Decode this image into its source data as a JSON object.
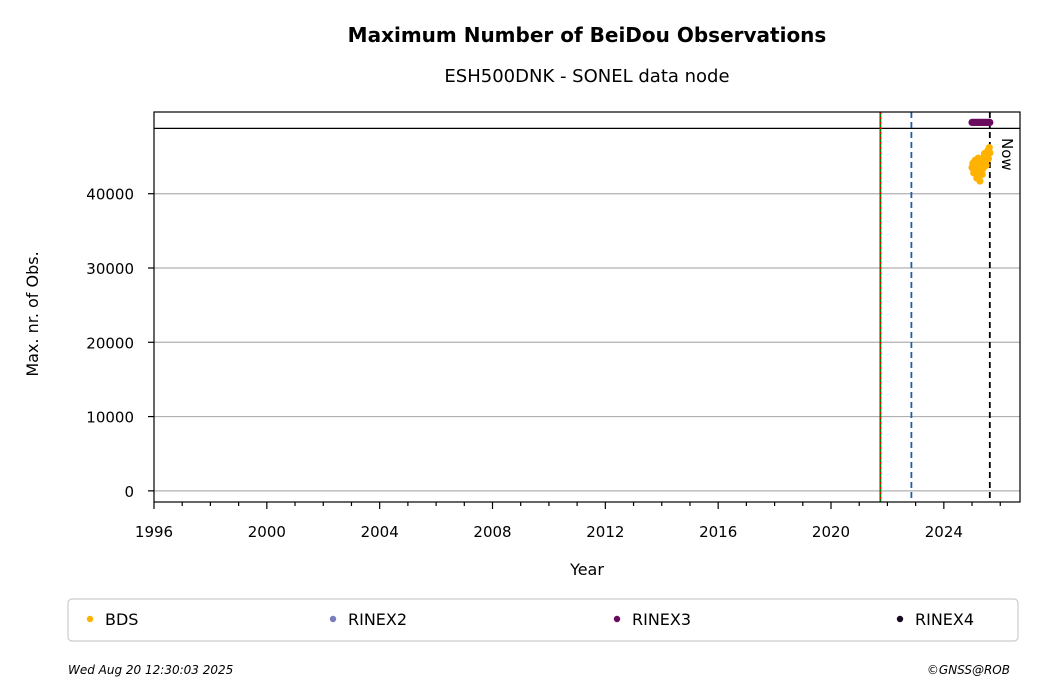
{
  "chart_data": {
    "type": "scatter",
    "title": "Maximum Number of BeiDou Observations",
    "subtitle": "ESH500DNK - SONEL data node",
    "xlabel": "Year",
    "ylabel": "Max. nr. of Obs.",
    "xlim": [
      1996,
      2026.7
    ],
    "ylim": [
      -1500,
      51000
    ],
    "x_ticks": [
      1996,
      2000,
      2004,
      2008,
      2012,
      2016,
      2020,
      2024
    ],
    "y_ticks": [
      0,
      10000,
      20000,
      30000,
      40000
    ],
    "grid": "horizontal",
    "reference_line_y": 48800,
    "vlines": [
      {
        "x": 2021.75,
        "color": "#008000",
        "style": "solid"
      },
      {
        "x": 2021.75,
        "color": "#ff0000",
        "style": "dotted"
      },
      {
        "x": 2022.85,
        "color": "#1f5fa8",
        "style": "dashed"
      },
      {
        "x": 2025.63,
        "color": "#000000",
        "style": "dashed",
        "label": "Now"
      }
    ],
    "series": [
      {
        "name": "BDS",
        "color": "#ffb300",
        "points": [
          [
            2025.0,
            43500
          ],
          [
            2025.03,
            44100
          ],
          [
            2025.06,
            42800
          ],
          [
            2025.08,
            43900
          ],
          [
            2025.11,
            44500
          ],
          [
            2025.14,
            43200
          ],
          [
            2025.17,
            42100
          ],
          [
            2025.19,
            43800
          ],
          [
            2025.22,
            44800
          ],
          [
            2025.25,
            43000
          ],
          [
            2025.28,
            41700
          ],
          [
            2025.31,
            43600
          ],
          [
            2025.33,
            44300
          ],
          [
            2025.36,
            42600
          ],
          [
            2025.39,
            43400
          ],
          [
            2025.42,
            44900
          ],
          [
            2025.44,
            45400
          ],
          [
            2025.47,
            44200
          ],
          [
            2025.5,
            43800
          ],
          [
            2025.53,
            45100
          ],
          [
            2025.56,
            45800
          ],
          [
            2025.58,
            44700
          ],
          [
            2025.61,
            46200
          ],
          [
            2025.63,
            45500
          ]
        ]
      },
      {
        "name": "RINEX2",
        "color": "#7b7bbf",
        "points": []
      },
      {
        "name": "RINEX3",
        "color": "#6a0a5f",
        "points": [
          [
            2025.0,
            49600
          ],
          [
            2025.05,
            49600
          ],
          [
            2025.1,
            49600
          ],
          [
            2025.15,
            49600
          ],
          [
            2025.2,
            49600
          ],
          [
            2025.25,
            49600
          ],
          [
            2025.3,
            49600
          ],
          [
            2025.35,
            49600
          ],
          [
            2025.4,
            49600
          ],
          [
            2025.45,
            49600
          ],
          [
            2025.5,
            49600
          ],
          [
            2025.55,
            49600
          ],
          [
            2025.6,
            49600
          ],
          [
            2025.63,
            49600
          ]
        ]
      },
      {
        "name": "RINEX4",
        "color": "#1a0a1f",
        "points": []
      }
    ],
    "legend_position": "bottom"
  },
  "footer": {
    "timestamp": "Wed Aug 20 12:30:03 2025",
    "credit": "©GNSS@ROB"
  }
}
